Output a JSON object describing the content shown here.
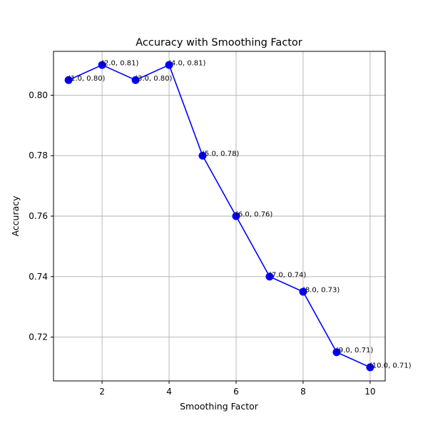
{
  "chart_data": {
    "type": "line",
    "title": "Accuracy with Smoothing Factor",
    "xlabel": "Smoothing Factor",
    "ylabel": "Accuracy",
    "xlim": [
      0.55,
      10.45
    ],
    "ylim": [
      0.7055,
      0.8145
    ],
    "grid": true,
    "x": [
      1,
      2,
      3,
      4,
      5,
      6,
      7,
      8,
      9,
      10
    ],
    "series": [
      {
        "values": [
          0.805,
          0.81,
          0.805,
          0.81,
          0.78,
          0.76,
          0.74,
          0.735,
          0.715,
          0.71
        ],
        "color": "#0000ff",
        "marker": "circle"
      }
    ],
    "data_labels": [
      "(1.0, 0.80)",
      "(2.0, 0.81)",
      "(3.0, 0.80)",
      "(4.0, 0.81)",
      "(5.0, 0.78)",
      "(6.0, 0.76)",
      "(7.0, 0.74)",
      "(8.0, 0.73)",
      "(9.0, 0.71)",
      "(10.0, 0.71)"
    ],
    "x_ticks": [
      2,
      4,
      6,
      8,
      10
    ],
    "x_tick_labels": [
      "2",
      "4",
      "6",
      "8",
      "10"
    ],
    "y_ticks": [
      0.72,
      0.74,
      0.76,
      0.78,
      0.8
    ],
    "y_tick_labels": [
      "0.72",
      "0.74",
      "0.76",
      "0.78",
      "0.80"
    ]
  }
}
